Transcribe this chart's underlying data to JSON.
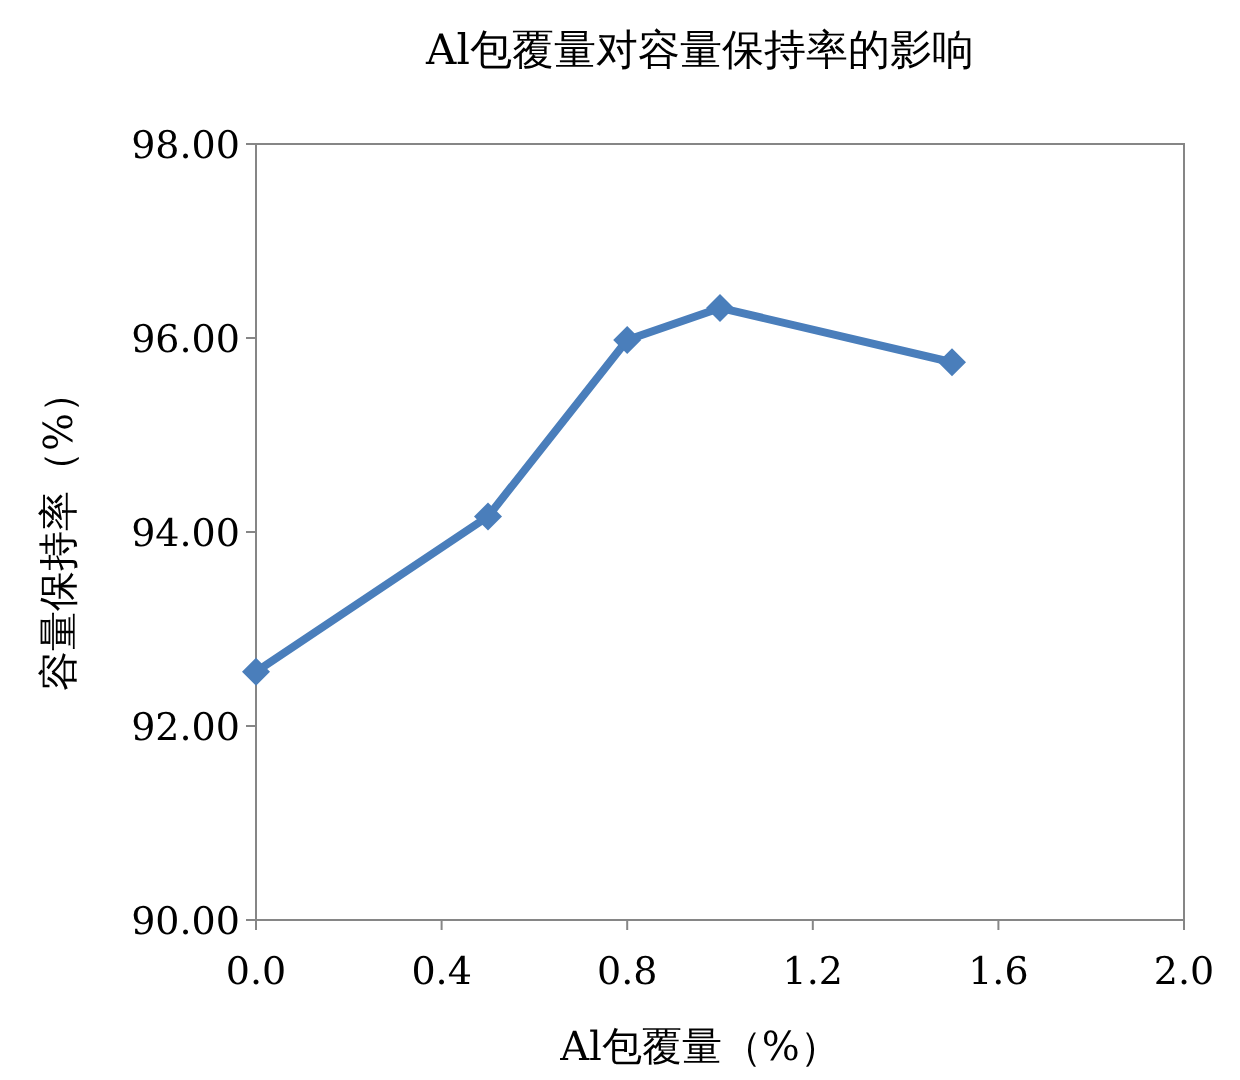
{
  "chart_data": {
    "type": "line",
    "title": "Al包覆量对容量保持率的影响",
    "xlabel": "Al包覆量（%）",
    "ylabel": "容量保持率（%）",
    "x": [
      0,
      0.5,
      0.8,
      1.0,
      1.5
    ],
    "series": [
      {
        "color": "#4a7ebb",
        "values": [
          92.56,
          94.16,
          95.98,
          96.31,
          95.75
        ]
      }
    ],
    "xlim": [
      0,
      2
    ],
    "ylim": [
      90,
      98
    ],
    "xticks": [
      {
        "value": 0,
        "label": "0.0"
      },
      {
        "value": 0.4,
        "label": "0.4"
      },
      {
        "value": 0.8,
        "label": "0.8"
      },
      {
        "value": 1.2,
        "label": "1.2"
      },
      {
        "value": 1.6,
        "label": "1.6"
      },
      {
        "value": 2,
        "label": "2.0"
      }
    ],
    "yticks": [
      {
        "value": 90,
        "label": "90.00"
      },
      {
        "value": 92,
        "label": "92.00"
      },
      {
        "value": 94,
        "label": "94.00"
      },
      {
        "value": 96,
        "label": "96.00"
      },
      {
        "value": 98,
        "label": "98.00"
      }
    ],
    "marker": "diamond",
    "line_style": "solid",
    "grid": false
  }
}
